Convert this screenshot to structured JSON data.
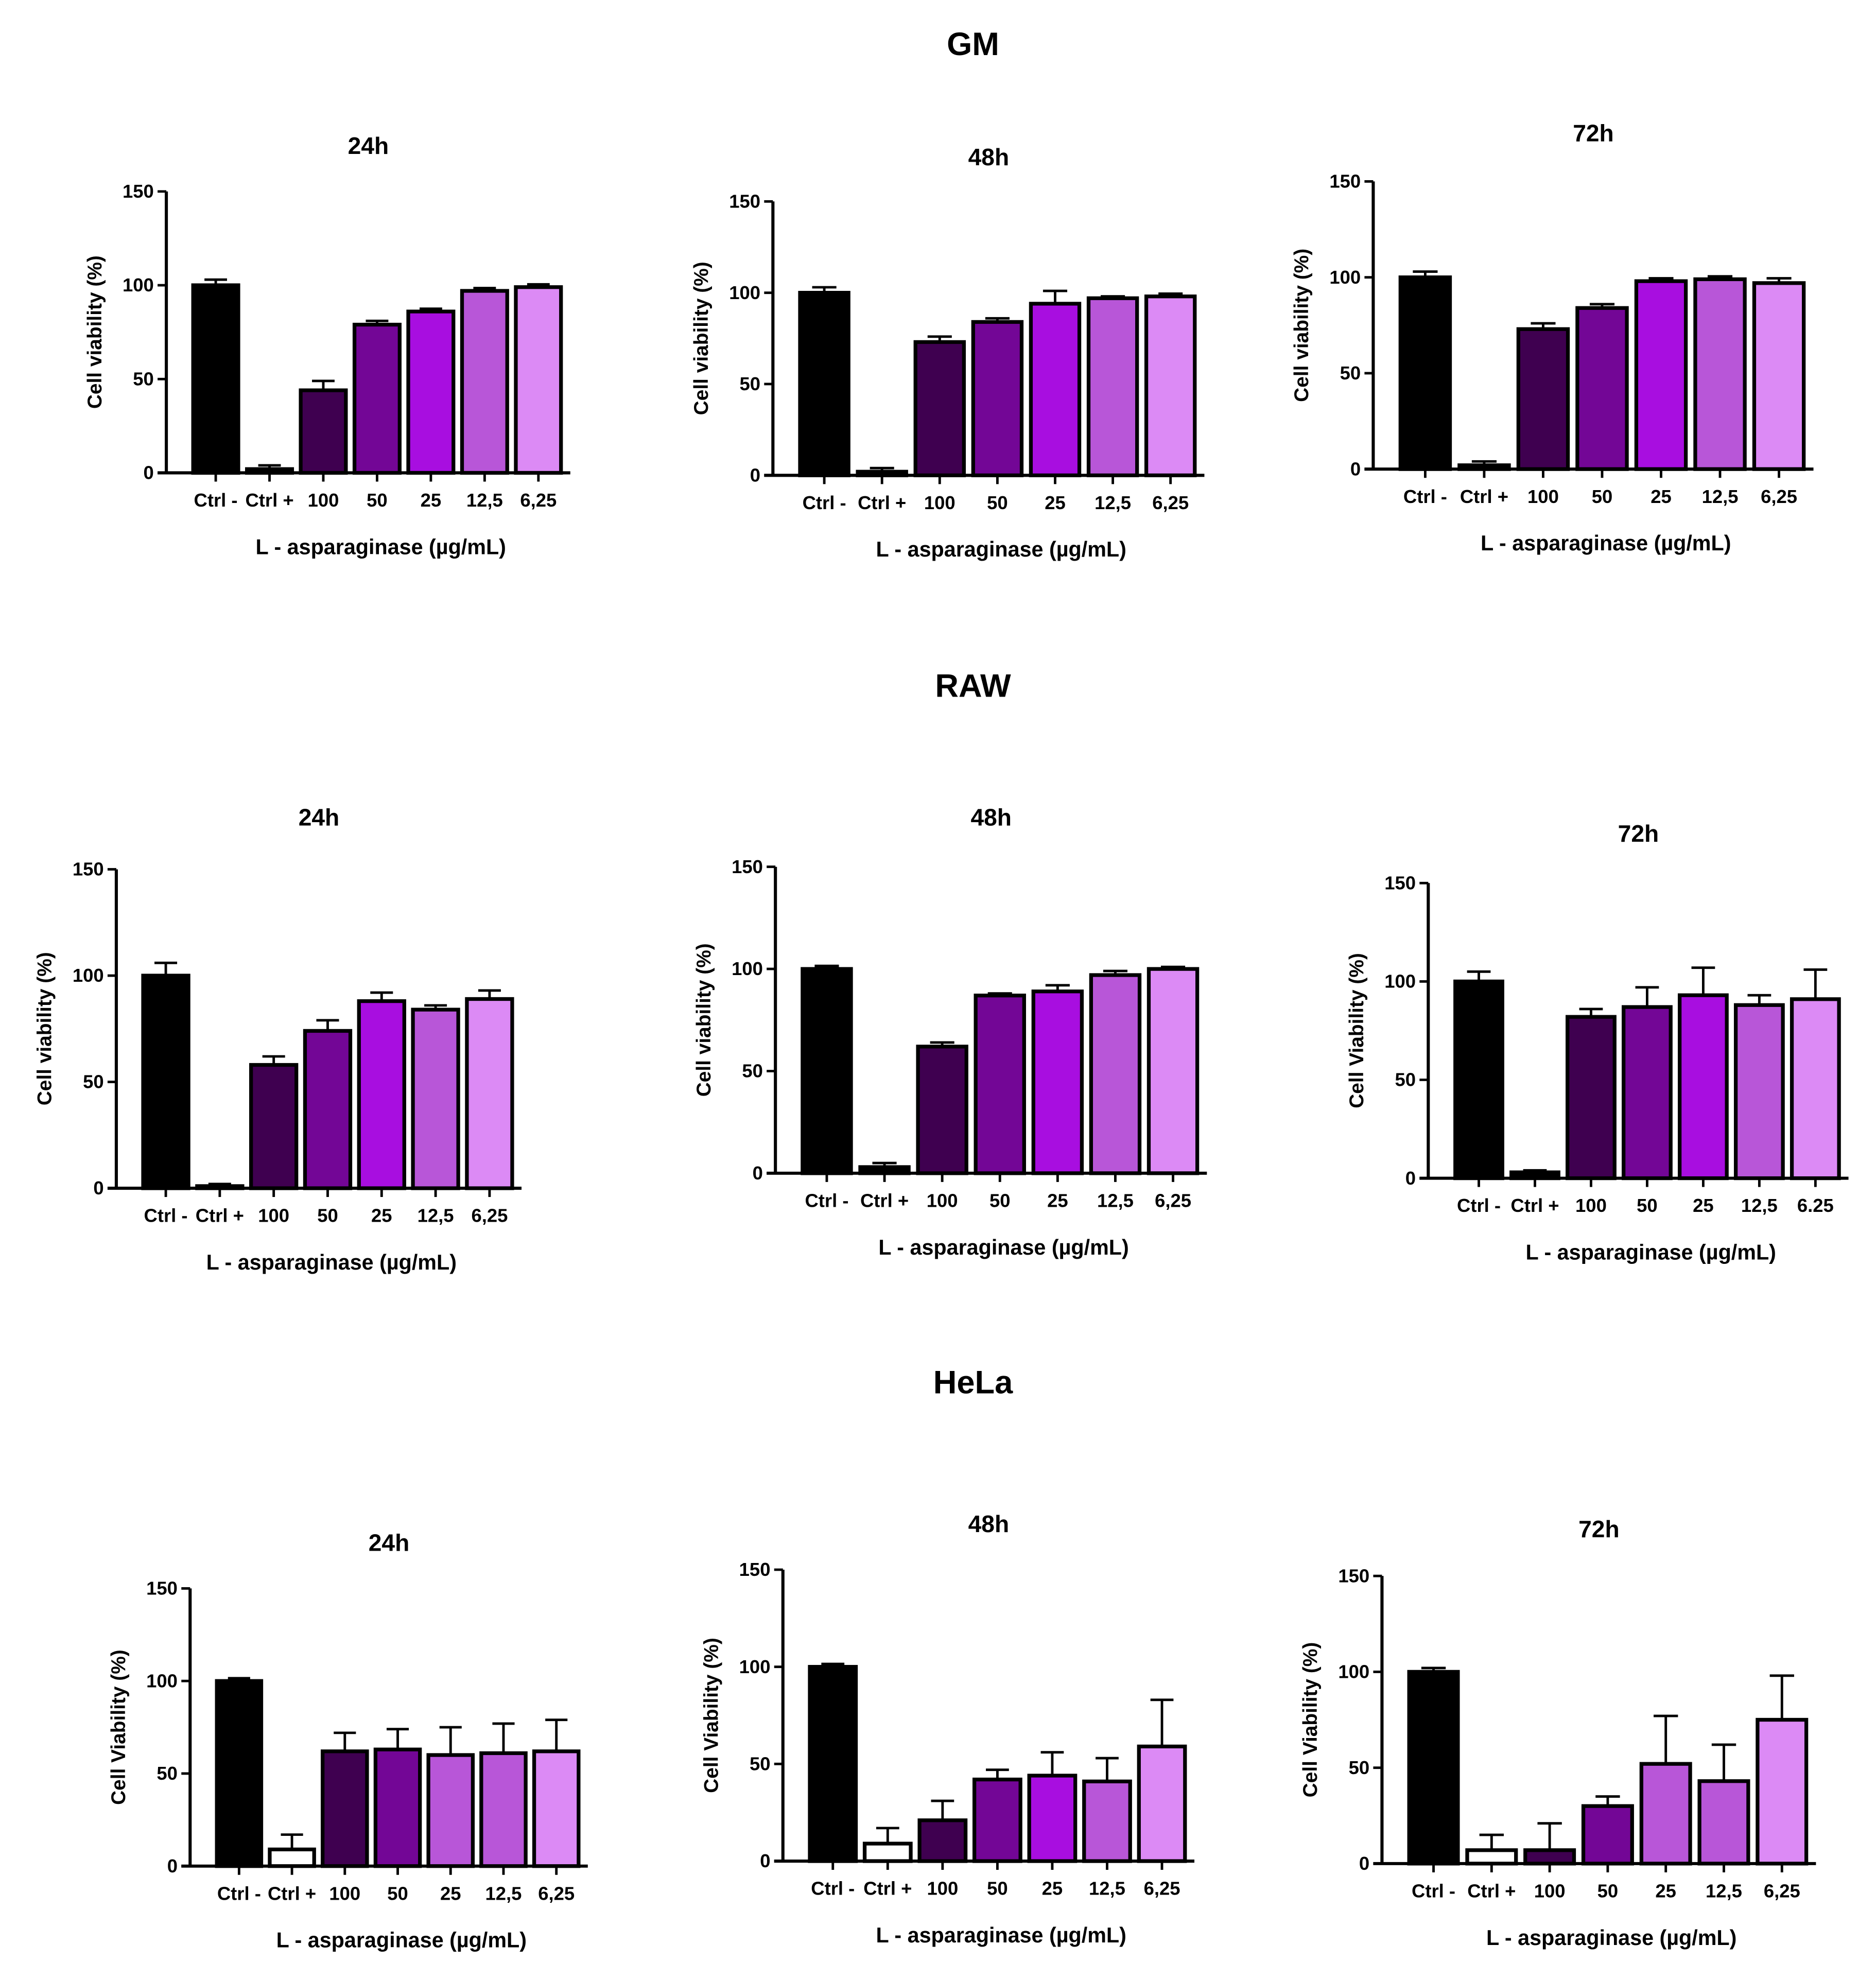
{
  "chart_data": {
    "type": "bar",
    "sections": [
      {
        "title": "GM",
        "panels": [
          {
            "title": "24h",
            "ylabel": "Cell viability (%)",
            "xlabel": "L - asparaginase (µg/mL)",
            "ylim": [
              0,
              150
            ],
            "yticks": [
              "0",
              "50",
              "100",
              "150"
            ],
            "categories": [
              "Ctrl -",
              "Ctrl +",
              "100",
              "50",
              "25",
              "12,5",
              "6,25"
            ],
            "values": [
              100,
              2,
              44,
              79,
              86,
              97,
              99
            ],
            "errors": [
              3,
              2,
              5,
              2,
              1.5,
              1.5,
              1.5
            ],
            "colors": [
              "#000000",
              "#000000",
              "#3f0050",
              "#730696",
              "#a80ee0",
              "#b856d8",
              "#dc8af5"
            ]
          },
          {
            "title": "48h",
            "ylabel": "Cell viability (%)",
            "xlabel": "L - asparaginase (µg/mL)",
            "ylim": [
              0,
              150
            ],
            "yticks": [
              "0",
              "50",
              "100",
              "150"
            ],
            "categories": [
              "Ctrl -",
              "Ctrl +",
              "100",
              "50",
              "25",
              "12,5",
              "6,25"
            ],
            "values": [
              100,
              2,
              73,
              84,
              94,
              97,
              98
            ],
            "errors": [
              3,
              2,
              3,
              2,
              7,
              1,
              1.5
            ],
            "colors": [
              "#000000",
              "#000000",
              "#3f0050",
              "#730696",
              "#a80ee0",
              "#b856d8",
              "#dc8af5"
            ]
          },
          {
            "title": "72h",
            "ylabel": "Cell viability (%)",
            "xlabel": "L - asparaginase (µg/mL)",
            "ylim": [
              0,
              150
            ],
            "yticks": [
              "0",
              "50",
              "100",
              "150"
            ],
            "categories": [
              "Ctrl -",
              "Ctrl +",
              "100",
              "50",
              "25",
              "12,5",
              "6,25"
            ],
            "values": [
              100,
              2,
              73,
              84,
              98,
              99,
              97
            ],
            "errors": [
              3,
              2,
              3,
              2,
              1.5,
              1.5,
              2.5
            ],
            "colors": [
              "#000000",
              "#000000",
              "#3f0050",
              "#730696",
              "#a80ee0",
              "#b856d8",
              "#dc8af5"
            ]
          }
        ]
      },
      {
        "title": "RAW",
        "panels": [
          {
            "title": "24h",
            "ylabel": "Cell viability (%)",
            "xlabel": "L - asparaginase (µg/mL)",
            "ylim": [
              0,
              150
            ],
            "yticks": [
              "0",
              "50",
              "100",
              "150"
            ],
            "categories": [
              "Ctrl -",
              "Ctrl +",
              "100",
              "50",
              "25",
              "12,5",
              "6,25"
            ],
            "values": [
              100,
              1,
              58,
              74,
              88,
              84,
              89
            ],
            "errors": [
              6,
              1,
              4,
              5,
              4,
              2,
              4
            ],
            "colors": [
              "#000000",
              "#000000",
              "#3f0050",
              "#730696",
              "#a80ee0",
              "#b856d8",
              "#dc8af5"
            ]
          },
          {
            "title": "48h",
            "ylabel": "Cell viability (%)",
            "xlabel": "L - asparaginase (µg/mL)",
            "ylim": [
              0,
              150
            ],
            "yticks": [
              "0",
              "50",
              "100",
              "150"
            ],
            "categories": [
              "Ctrl -",
              "Ctrl +",
              "100",
              "50",
              "25",
              "12,5",
              "6,25"
            ],
            "values": [
              100,
              3,
              62,
              87,
              89,
              97,
              100
            ],
            "errors": [
              1.5,
              2,
              2,
              1,
              3,
              2,
              1
            ],
            "colors": [
              "#000000",
              "#000000",
              "#3f0050",
              "#730696",
              "#a80ee0",
              "#b856d8",
              "#dc8af5"
            ]
          },
          {
            "title": "72h",
            "ylabel": "Cell Viability (%)",
            "xlabel": "L - asparaginase (µg/mL)",
            "ylim": [
              0,
              150
            ],
            "yticks": [
              "0",
              "50",
              "100",
              "150"
            ],
            "categories": [
              "Ctrl -",
              "Ctrl +",
              "100",
              "50",
              "25",
              "12,5",
              "6.25"
            ],
            "values": [
              100,
              3,
              82,
              87,
              93,
              88,
              91
            ],
            "errors": [
              5,
              1,
              4,
              10,
              14,
              5,
              15
            ],
            "colors": [
              "#000000",
              "#000000",
              "#3f0050",
              "#730696",
              "#a80ee0",
              "#b856d8",
              "#dc8af5"
            ]
          }
        ]
      },
      {
        "title": "HeLa",
        "panels": [
          {
            "title": "24h",
            "ylabel": "Cell Viability (%)",
            "xlabel": "L - asparaginase (µg/mL)",
            "ylim": [
              0,
              150
            ],
            "yticks": [
              "0",
              "50",
              "100",
              "150"
            ],
            "categories": [
              "Ctrl -",
              "Ctrl +",
              "100",
              "50",
              "25",
              "12,5",
              "6,25"
            ],
            "values": [
              100,
              9,
              62,
              63,
              60,
              61,
              62
            ],
            "errors": [
              1.5,
              8,
              10,
              11,
              15,
              16,
              17
            ],
            "colors": [
              "#000000",
              "#ffffff",
              "#3f0050",
              "#730696",
              "#b856d8",
              "#b856d8",
              "#dc8af5"
            ]
          },
          {
            "title": "48h",
            "ylabel": "Cell Viability (%)",
            "xlabel": "L - asparaginase (µg/mL)",
            "ylim": [
              0,
              150
            ],
            "yticks": [
              "0",
              "50",
              "100",
              "150"
            ],
            "categories": [
              "Ctrl -",
              "Ctrl +",
              "100",
              "50",
              "25",
              "12,5",
              "6,25"
            ],
            "values": [
              100,
              9,
              21,
              42,
              44,
              41,
              59
            ],
            "errors": [
              1.5,
              8,
              10,
              5,
              12,
              12,
              24
            ],
            "colors": [
              "#000000",
              "#ffffff",
              "#3f0050",
              "#730696",
              "#a80ee0",
              "#b856d8",
              "#dc8af5"
            ]
          },
          {
            "title": "72h",
            "ylabel": "Cell Viability (%)",
            "xlabel": "L - asparaginase (µg/mL)",
            "ylim": [
              0,
              150
            ],
            "yticks": [
              "0",
              "50",
              "100",
              "150"
            ],
            "categories": [
              "Ctrl -",
              "Ctrl +",
              "100",
              "50",
              "25",
              "12,5",
              "6,25"
            ],
            "values": [
              100,
              7,
              7,
              30,
              52,
              43,
              75
            ],
            "errors": [
              2,
              8,
              14,
              5,
              25,
              19,
              23
            ],
            "colors": [
              "#000000",
              "#ffffff",
              "#3f0050",
              "#730696",
              "#b856d8",
              "#b856d8",
              "#dc8af5"
            ]
          }
        ]
      }
    ]
  }
}
